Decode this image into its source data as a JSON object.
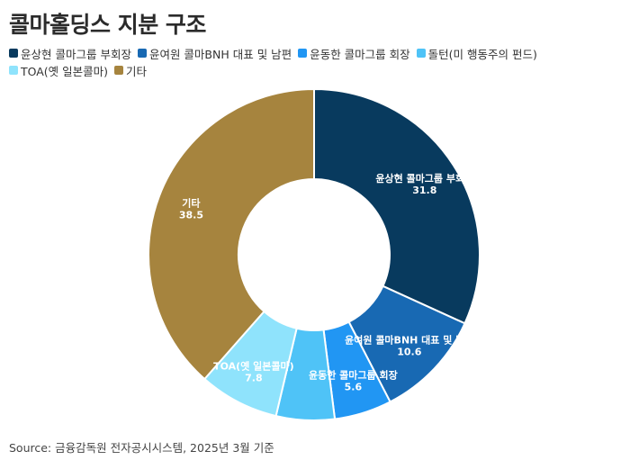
{
  "title": "콜마홀딩스 지분 구조",
  "source": "Source: 금융감독원 전자공시시스템, 2025년 3월 기준",
  "chart_data": {
    "type": "pie",
    "donut": true,
    "start_angle_deg": 0,
    "direction": "clockwise",
    "legend_position": "top",
    "slices": [
      {
        "label": "윤상현 콜마그룹 부회장",
        "value": 31.8,
        "color": "#083a5e",
        "label_text": "31.8"
      },
      {
        "label": "윤여원 콜마BNH 대표 및 남편",
        "value": 10.6,
        "color": "#1869b3",
        "label_text": "10.6"
      },
      {
        "label": "윤동한 콜마그룹 회장",
        "value": 5.6,
        "color": "#2196f3",
        "label_text": "5.6"
      },
      {
        "label": "돌턴(미 행동주의 펀드)",
        "value": 5.7,
        "color": "#4fc3f7",
        "label_text": ""
      },
      {
        "label": "TOA(옛 일본콜마)",
        "value": 7.8,
        "color": "#8fe3fc",
        "label_text": "7.8"
      },
      {
        "label": "기타",
        "value": 38.5,
        "color": "#a6843e",
        "label_text": "38.5"
      }
    ]
  }
}
